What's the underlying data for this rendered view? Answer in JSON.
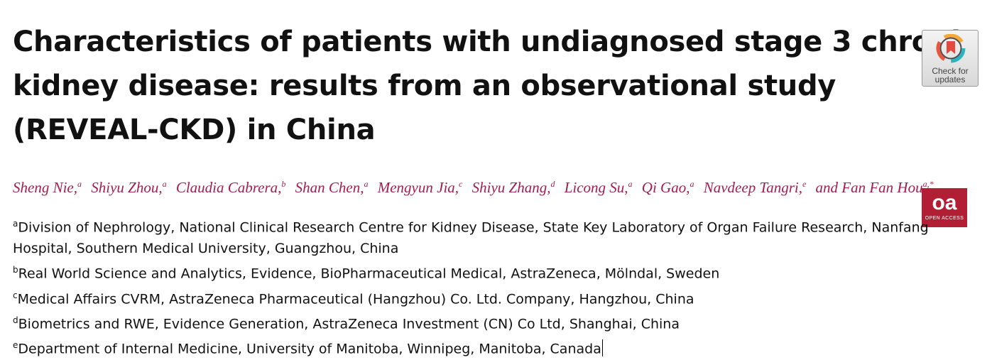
{
  "title_lines": [
    "Characteristics of patients with undiagnosed stage 3 chronic",
    "kidney disease: results from an observational study",
    "(REVEAL-CKD) in China"
  ],
  "authors": [
    {
      "name": "Sheng Nie,",
      "sup": "a"
    },
    {
      "name": "Shiyu Zhou,",
      "sup": "a"
    },
    {
      "name": "Claudia Cabrera,",
      "sup": "b"
    },
    {
      "name": "Shan Chen,",
      "sup": "a"
    },
    {
      "name": "Mengyun Jia,",
      "sup": "c"
    },
    {
      "name": "Shiyu Zhang,",
      "sup": "d"
    },
    {
      "name": "Licong Su,",
      "sup": "a"
    },
    {
      "name": "Qi Gao,",
      "sup": "a"
    },
    {
      "name": "Navdeep Tangri,",
      "sup": "e"
    },
    {
      "name": "and Fan Fan Hou",
      "sup": "a,*"
    }
  ],
  "affiliations": [
    {
      "sup": "a",
      "lines": [
        "Division of Nephrology, National Clinical Research Centre for Kidney Disease, State Key Laboratory of Organ Failure Research, Nanfang",
        "Hospital, Southern Medical University, Guangzhou, China"
      ]
    },
    {
      "sup": "b",
      "lines": [
        "Real World Science and Analytics, Evidence, BioPharmaceutical Medical, AstraZeneca, Mölndal, Sweden"
      ]
    },
    {
      "sup": "c",
      "lines": [
        "Medical Affairs CVRM, AstraZeneca Pharmaceutical (Hangzhou) Co. Ltd. Company, Hangzhou, China"
      ]
    },
    {
      "sup": "d",
      "lines": [
        "Biometrics and RWE, Evidence Generation, AstraZeneca Investment (CN) Co Ltd, Shanghai, China"
      ]
    },
    {
      "sup": "e",
      "lines": [
        "Department of Internal Medicine, University of Manitoba, Winnipeg, Manitoba, Canada"
      ]
    }
  ],
  "check_updates": {
    "line1": "Check for",
    "line2": "updates",
    "icon": "bookmark-icon"
  },
  "open_access": {
    "mark": "oa",
    "label": "OPEN ACCESS",
    "color": "#b21f35"
  },
  "colors": {
    "author_names": "#a51d4f",
    "text": "#111111"
  }
}
